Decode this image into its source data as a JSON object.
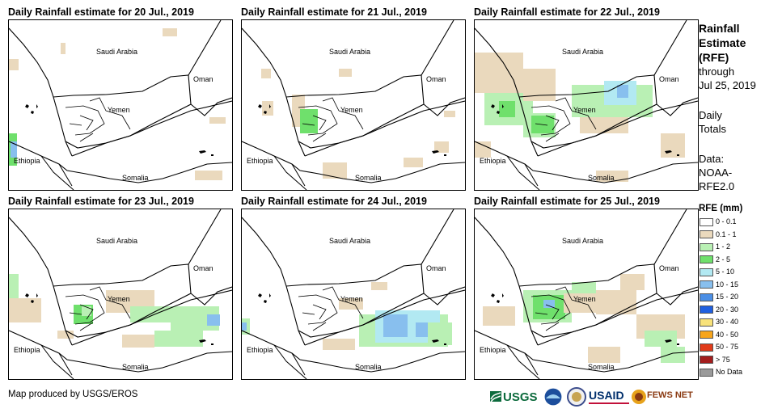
{
  "panels": [
    {
      "title": "Daily Rainfall estimate for 20 Jul., 2019"
    },
    {
      "title": "Daily Rainfall estimate for 21 Jul., 2019"
    },
    {
      "title": "Daily Rainfall estimate for 22 Jul., 2019"
    },
    {
      "title": "Daily Rainfall estimate for 23 Jul., 2019"
    },
    {
      "title": "Daily Rainfall estimate for 24 Jul., 2019"
    },
    {
      "title": "Daily Rainfall estimate for 25 Jul., 2019"
    }
  ],
  "map_labels": {
    "saudi": "Saudi Arabia",
    "oman": "Oman",
    "yemen": "Yemen",
    "ethiopia": "Ethiopia",
    "somalia": "Somalia"
  },
  "sidebar": {
    "title_line1": "Rainfall",
    "title_line2": "Estimate",
    "title_line3": "(RFE)",
    "through": "through",
    "date": "Jul 25, 2019",
    "daily1": "Daily",
    "daily2": "Totals",
    "data1": "Data:",
    "data2": "NOAA-",
    "data3": "RFE2.0"
  },
  "legend": {
    "title": "RFE (mm)",
    "items": [
      {
        "label": "0 - 0.1",
        "color": "#ffffff"
      },
      {
        "label": "0.1 - 1",
        "color": "#ead9bd"
      },
      {
        "label": "1 - 2",
        "color": "#b9f0b4"
      },
      {
        "label": "2 - 5",
        "color": "#6fe06c"
      },
      {
        "label": "5 - 10",
        "color": "#b2e9f2"
      },
      {
        "label": "10 - 15",
        "color": "#88bfee"
      },
      {
        "label": "15 - 20",
        "color": "#4b8fe6"
      },
      {
        "label": "20 - 30",
        "color": "#1f5fe0"
      },
      {
        "label": "30 - 40",
        "color": "#f8e27a"
      },
      {
        "label": "40 - 50",
        "color": "#f7a51c"
      },
      {
        "label": "50 - 75",
        "color": "#e23b1a"
      },
      {
        "label": "> 75",
        "color": "#a31d1d"
      },
      {
        "label": "No Data",
        "color": "#9a9a9a"
      }
    ]
  },
  "credit": "Map produced by USGS/EROS",
  "logos": {
    "usgs": "USGS",
    "usaid": "USAID",
    "fews": "FEWS NET"
  }
}
